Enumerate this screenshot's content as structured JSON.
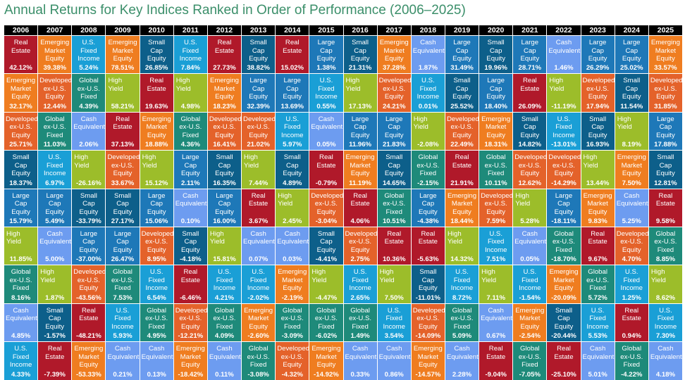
{
  "title": "Annual Returns for Key Indices Ranked in Order of Performance (2006–2025)",
  "assets": {
    "RE": {
      "label": "Real\nEstate",
      "color": "#b0192a"
    },
    "EM": {
      "label": "Emerging\nMarket\nEquity",
      "color": "#ef7d20"
    },
    "USFI": {
      "label": "U.S.\nFixed\nIncome",
      "color": "#1a9fd6"
    },
    "SC": {
      "label": "Small\nCap\nEquity",
      "color": "#0d5f8a"
    },
    "HY": {
      "label": "High Yield",
      "color": "#9cbd2a"
    },
    "LC": {
      "label": "Large\nCap\nEquity",
      "color": "#1e78b8"
    },
    "DEV": {
      "label": "Developed\nex-U.S.\nEquity",
      "color": "#e4622a"
    },
    "GFI": {
      "label": "Global\nex-U.S.\nFixed",
      "color": "#1e8a7a"
    },
    "CASH": {
      "label": "Cash\nEquivalent",
      "color": "#6d9cf0"
    }
  },
  "chart_data": {
    "type": "table",
    "title": "Annual Returns for Key Indices Ranked in Order of Performance (2006–2025)",
    "years": [
      "2006",
      "2007",
      "2008",
      "2009",
      "2010",
      "2011",
      "2012",
      "2013",
      "2014",
      "2015",
      "2016",
      "2017",
      "2018",
      "2019",
      "2020",
      "2021",
      "2022",
      "2023",
      "2024",
      "2025"
    ],
    "columns": [
      [
        [
          "RE",
          "42.12%"
        ],
        [
          "EM",
          "32.17%"
        ],
        [
          "DEV",
          "25.71%"
        ],
        [
          "SC",
          "18.37%"
        ],
        [
          "LC",
          "15.79%"
        ],
        [
          "HY",
          "11.85%"
        ],
        [
          "GFI",
          "8.16%"
        ],
        [
          "CASH",
          "4.85%"
        ],
        [
          "USFI",
          "4.33%"
        ]
      ],
      [
        [
          "EM",
          "39.38%"
        ],
        [
          "DEV",
          "12.44%"
        ],
        [
          "GFI",
          "11.03%"
        ],
        [
          "USFI",
          "6.97%"
        ],
        [
          "LC",
          "5.49%"
        ],
        [
          "CASH",
          "5.00%"
        ],
        [
          "HY",
          "1.87%"
        ],
        [
          "SC",
          "-1.57%"
        ],
        [
          "RE",
          "-7.39%"
        ]
      ],
      [
        [
          "USFI",
          "5.24%"
        ],
        [
          "GFI",
          "4.39%"
        ],
        [
          "CASH",
          "2.06%"
        ],
        [
          "HY",
          "-26.16%"
        ],
        [
          "SC",
          "-33.79%"
        ],
        [
          "LC",
          "-37.00%"
        ],
        [
          "DEV",
          "-43.56%"
        ],
        [
          "RE",
          "-48.21%"
        ],
        [
          "EM",
          "-53.33%"
        ]
      ],
      [
        [
          "EM",
          "78.51%"
        ],
        [
          "HY",
          "58.21%"
        ],
        [
          "RE",
          "37.13%"
        ],
        [
          "DEV",
          "33.67%"
        ],
        [
          "SC",
          "27.17%"
        ],
        [
          "LC",
          "26.47%"
        ],
        [
          "GFI",
          "7.53%"
        ],
        [
          "USFI",
          "5.93%"
        ],
        [
          "CASH",
          "0.21%"
        ]
      ],
      [
        [
          "SC",
          "26.85%"
        ],
        [
          "RE",
          "19.63%"
        ],
        [
          "EM",
          "18.88%"
        ],
        [
          "HY",
          "15.12%"
        ],
        [
          "LC",
          "15.06%"
        ],
        [
          "DEV",
          "8.95%"
        ],
        [
          "USFI",
          "6.54%"
        ],
        [
          "GFI",
          "4.95%"
        ],
        [
          "CASH",
          "0.13%"
        ]
      ],
      [
        [
          "USFI",
          "7.84%"
        ],
        [
          "HY",
          "4.98%"
        ],
        [
          "GFI",
          "4.36%"
        ],
        [
          "LC",
          "2.11%"
        ],
        [
          "CASH",
          "0.10%"
        ],
        [
          "SC",
          "-4.18%"
        ],
        [
          "RE",
          "-6.46%"
        ],
        [
          "DEV",
          "-12.21%"
        ],
        [
          "EM",
          "-18.42%"
        ]
      ],
      [
        [
          "RE",
          "27.73%"
        ],
        [
          "EM",
          "18.23%"
        ],
        [
          "DEV",
          "16.41%"
        ],
        [
          "SC",
          "16.35%"
        ],
        [
          "LC",
          "16.00%"
        ],
        [
          "HY",
          "15.81%"
        ],
        [
          "USFI",
          "4.21%"
        ],
        [
          "GFI",
          "4.09%"
        ],
        [
          "CASH",
          "0.11%"
        ]
      ],
      [
        [
          "SC",
          "38.82%"
        ],
        [
          "LC",
          "32.39%"
        ],
        [
          "DEV",
          "21.02%"
        ],
        [
          "HY",
          "7.44%"
        ],
        [
          "RE",
          "3.67%"
        ],
        [
          "CASH",
          "0.07%"
        ],
        [
          "USFI",
          "-2.02%"
        ],
        [
          "EM",
          "-2.60%"
        ],
        [
          "GFI",
          "-3.08%"
        ]
      ],
      [
        [
          "RE",
          "15.02%"
        ],
        [
          "LC",
          "13.69%"
        ],
        [
          "USFI",
          "5.97%"
        ],
        [
          "SC",
          "4.89%"
        ],
        [
          "HY",
          "2.45%"
        ],
        [
          "CASH",
          "0.03%"
        ],
        [
          "EM",
          "-2.19%"
        ],
        [
          "GFI",
          "-3.09%"
        ],
        [
          "DEV",
          "-4.32%"
        ]
      ],
      [
        [
          "LC",
          "1.38%"
        ],
        [
          "USFI",
          "0.55%"
        ],
        [
          "CASH",
          "0.05%"
        ],
        [
          "RE",
          "-0.79%"
        ],
        [
          "DEV",
          "-3.04%"
        ],
        [
          "SC",
          "-4.41%"
        ],
        [
          "HY",
          "-4.47%"
        ],
        [
          "GFI",
          "-6.02%"
        ],
        [
          "EM",
          "-14.92%"
        ]
      ],
      [
        [
          "SC",
          "21.31%"
        ],
        [
          "HY",
          "17.13%"
        ],
        [
          "LC",
          "11.96%"
        ],
        [
          "EM",
          "11.19%"
        ],
        [
          "RE",
          "4.06%"
        ],
        [
          "DEV",
          "2.75%"
        ],
        [
          "USFI",
          "2.65%"
        ],
        [
          "GFI",
          "1.49%"
        ],
        [
          "CASH",
          "0.33%"
        ]
      ],
      [
        [
          "EM",
          "37.28%"
        ],
        [
          "DEV",
          "24.21%"
        ],
        [
          "LC",
          "21.83%"
        ],
        [
          "SC",
          "14.65%"
        ],
        [
          "GFI",
          "10.51%"
        ],
        [
          "RE",
          "10.36%"
        ],
        [
          "HY",
          "7.50%"
        ],
        [
          "USFI",
          "3.54%"
        ],
        [
          "CASH",
          "0.86%"
        ]
      ],
      [
        [
          "CASH",
          "1.87%"
        ],
        [
          "USFI",
          "0.01%"
        ],
        [
          "HY",
          "-2.08%"
        ],
        [
          "GFI",
          "-2.15%"
        ],
        [
          "LC",
          "-4.38%"
        ],
        [
          "RE",
          "-5.63%"
        ],
        [
          "SC",
          "-11.01%"
        ],
        [
          "DEV",
          "-14.09%"
        ],
        [
          "EM",
          "-14.57%"
        ]
      ],
      [
        [
          "LC",
          "31.49%"
        ],
        [
          "SC",
          "25.52%"
        ],
        [
          "DEV",
          "22.49%"
        ],
        [
          "RE",
          "21.91%"
        ],
        [
          "EM",
          "18.44%"
        ],
        [
          "HY",
          "14.32%"
        ],
        [
          "USFI",
          "8.72%"
        ],
        [
          "GFI",
          "5.09%"
        ],
        [
          "CASH",
          "2.28%"
        ]
      ],
      [
        [
          "SC",
          "19.96%"
        ],
        [
          "LC",
          "18.40%"
        ],
        [
          "EM",
          "18.31%"
        ],
        [
          "GFI",
          "10.11%"
        ],
        [
          "DEV",
          "7.59%"
        ],
        [
          "USFI",
          "7.51%"
        ],
        [
          "HY",
          "7.11%"
        ],
        [
          "CASH",
          "0.67%"
        ],
        [
          "RE",
          "-9.04%"
        ]
      ],
      [
        [
          "LC",
          "28.71%"
        ],
        [
          "RE",
          "26.09%"
        ],
        [
          "SC",
          "14.82%"
        ],
        [
          "DEV",
          "12.62%"
        ],
        [
          "HY",
          "5.28%"
        ],
        [
          "CASH",
          "0.05%"
        ],
        [
          "USFI",
          "-1.54%"
        ],
        [
          "EM",
          "-2.54%"
        ],
        [
          "GFI",
          "-7.05%"
        ]
      ],
      [
        [
          "CASH",
          "1.46%"
        ],
        [
          "HY",
          "-11.19%"
        ],
        [
          "USFI",
          "-13.01%"
        ],
        [
          "DEV",
          "-14.29%"
        ],
        [
          "LC",
          "-18.11%"
        ],
        [
          "GFI",
          "-18.70%"
        ],
        [
          "EM",
          "-20.09%"
        ],
        [
          "SC",
          "-20.44%"
        ],
        [
          "RE",
          "-25.10%"
        ]
      ],
      [
        [
          "LC",
          "26.29%"
        ],
        [
          "DEV",
          "17.94%"
        ],
        [
          "SC",
          "16.93%"
        ],
        [
          "HY",
          "13.44%"
        ],
        [
          "EM",
          "9.83%"
        ],
        [
          "RE",
          "9.67%"
        ],
        [
          "GFI",
          "5.72%"
        ],
        [
          "USFI",
          "5.53%"
        ],
        [
          "CASH",
          "5.01%"
        ]
      ],
      [
        [
          "LC",
          "25.02%"
        ],
        [
          "SC",
          "11.54%"
        ],
        [
          "HY",
          "8.19%"
        ],
        [
          "EM",
          "7.50%"
        ],
        [
          "CASH",
          "5.25%"
        ],
        [
          "DEV",
          "4.70%"
        ],
        [
          "USFI",
          "1.25%"
        ],
        [
          "RE",
          "0.94%"
        ],
        [
          "GFI",
          "-4.22%"
        ]
      ],
      [
        [
          "EM",
          "33.57%"
        ],
        [
          "DEV",
          "31.85%"
        ],
        [
          "LC",
          "17.88%"
        ],
        [
          "SC",
          "12.81%"
        ],
        [
          "RE",
          "9.58%"
        ],
        [
          "GFI",
          "8.85%"
        ],
        [
          "HY",
          "8.62%"
        ],
        [
          "USFI",
          "7.30%"
        ],
        [
          "CASH",
          "4.18%"
        ]
      ]
    ]
  }
}
